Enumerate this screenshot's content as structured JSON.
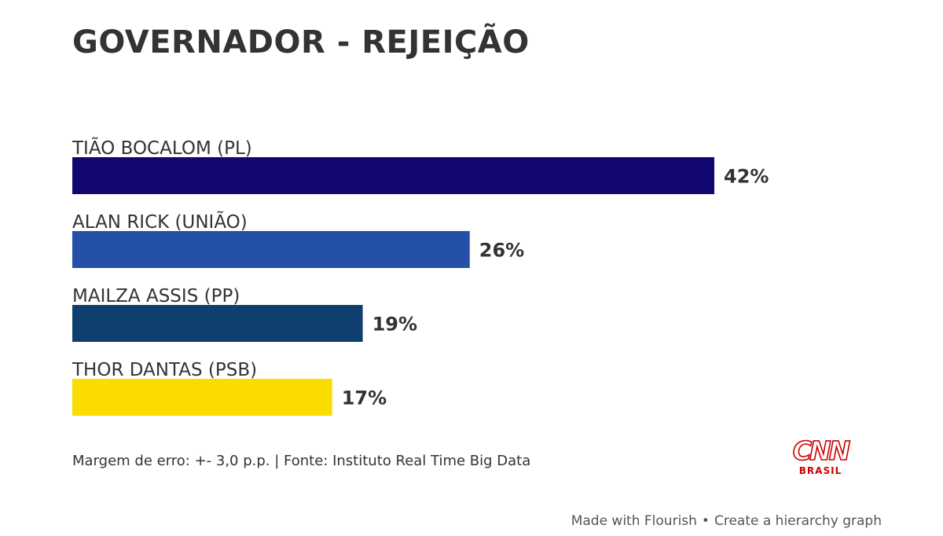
{
  "chart_data": {
    "type": "bar",
    "orientation": "horizontal",
    "title": "GOVERNADOR - REJEIÇÃO",
    "categories": [
      "TIÃO BOCALOM (PL)",
      "ALAN RICK (UNIÃO)",
      "MAILZA ASSIS (PP)",
      "THOR DANTAS (PSB)"
    ],
    "values": [
      42,
      26,
      19,
      17
    ],
    "value_labels": [
      "42%",
      "26%",
      "19%",
      "17%"
    ],
    "colors": [
      "#12076e",
      "#2450a8",
      "#0e3f6e",
      "#fadc00"
    ],
    "xlim": [
      0,
      42
    ],
    "grid": false,
    "legend": "none"
  },
  "footnote": "Margem de erro: +- 3,0 p.p. | Fonte: Instituto Real Time Big Data",
  "logo": {
    "main": "CNN",
    "sub": "BRASIL"
  },
  "credit": {
    "left": "Made with Flourish",
    "separator": "•",
    "right": "Create a hierarchy graph"
  }
}
